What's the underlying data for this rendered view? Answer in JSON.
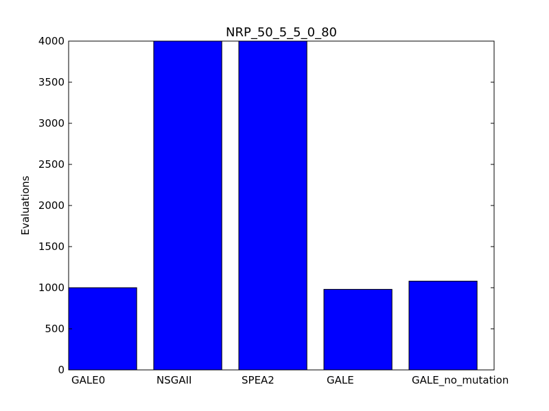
{
  "chart_data": {
    "type": "bar",
    "title": "NRP_50_5_5_0_80",
    "xlabel": "",
    "ylabel": "Evaluations",
    "categories": [
      "GALE0",
      "NSGAII",
      "SPEA2",
      "GALE",
      "GALE_no_mutation"
    ],
    "values": [
      1000,
      4000,
      4000,
      980,
      1080
    ],
    "ylim": [
      0,
      4000
    ],
    "yticks": [
      0,
      500,
      1000,
      1500,
      2000,
      2500,
      3000,
      3500,
      4000
    ],
    "grid": false,
    "bar_color": "#0000ff"
  }
}
